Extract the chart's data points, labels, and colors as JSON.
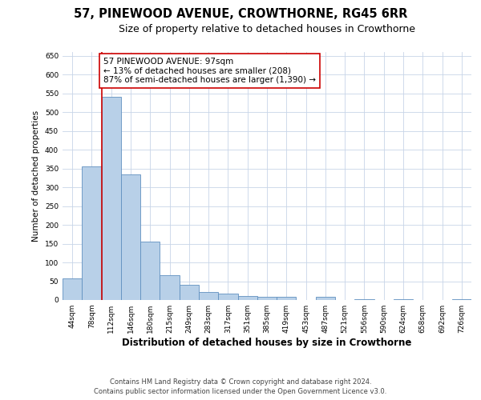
{
  "title": "57, PINEWOOD AVENUE, CROWTHORNE, RG45 6RR",
  "subtitle": "Size of property relative to detached houses in Crowthorne",
  "xlabel": "Distribution of detached houses by size in Crowthorne",
  "ylabel": "Number of detached properties",
  "categories": [
    "44sqm",
    "78sqm",
    "112sqm",
    "146sqm",
    "180sqm",
    "215sqm",
    "249sqm",
    "283sqm",
    "317sqm",
    "351sqm",
    "385sqm",
    "419sqm",
    "453sqm",
    "487sqm",
    "521sqm",
    "556sqm",
    "590sqm",
    "624sqm",
    "658sqm",
    "692sqm",
    "726sqm"
  ],
  "values": [
    57,
    355,
    540,
    335,
    155,
    67,
    40,
    22,
    17,
    10,
    8,
    8,
    0,
    8,
    0,
    3,
    0,
    3,
    0,
    0,
    3
  ],
  "bar_color": "#b8d0e8",
  "bar_edge_color": "#6090c0",
  "vline_color": "#cc0000",
  "annotation_text": "57 PINEWOOD AVENUE: 97sqm\n← 13% of detached houses are smaller (208)\n87% of semi-detached houses are larger (1,390) →",
  "annotation_box_color": "#ffffff",
  "annotation_box_edge": "#cc0000",
  "ylim": [
    0,
    660
  ],
  "yticks": [
    0,
    50,
    100,
    150,
    200,
    250,
    300,
    350,
    400,
    450,
    500,
    550,
    600,
    650
  ],
  "background_color": "#ffffff",
  "grid_color": "#c8d4e8",
  "footer_line1": "Contains HM Land Registry data © Crown copyright and database right 2024.",
  "footer_line2": "Contains public sector information licensed under the Open Government Licence v3.0.",
  "title_fontsize": 10.5,
  "subtitle_fontsize": 9,
  "xlabel_fontsize": 8.5,
  "ylabel_fontsize": 7.5,
  "tick_fontsize": 6.5,
  "annotation_fontsize": 7.5,
  "footer_fontsize": 6
}
